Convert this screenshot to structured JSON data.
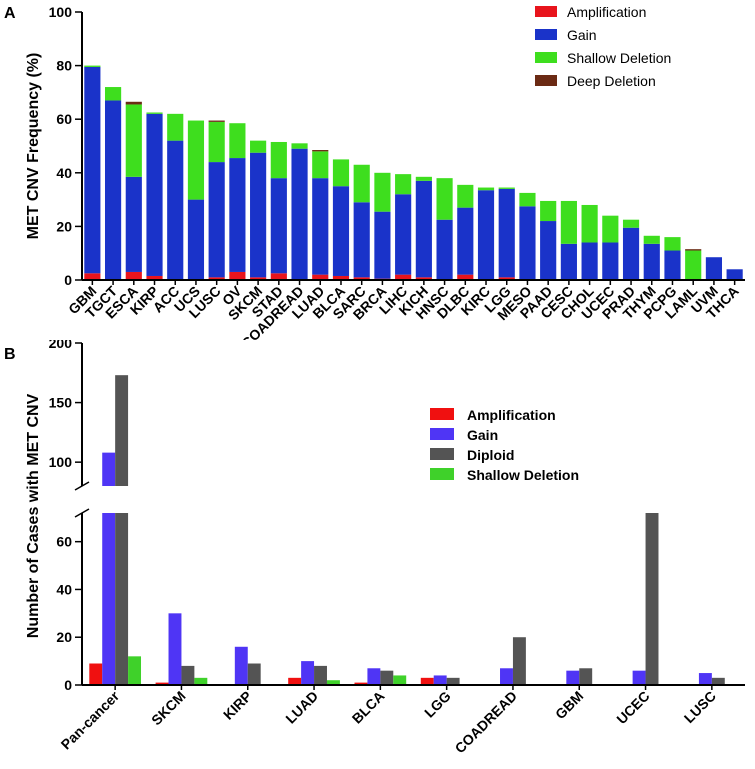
{
  "chart_data": [
    {
      "type": "bar",
      "stacked": true,
      "panel_label": "A",
      "title": "",
      "xlabel": "",
      "ylabel": "MET CNV Frequency (%)",
      "ylim": [
        0,
        100
      ],
      "yticks": [
        0,
        20,
        40,
        60,
        80,
        100
      ],
      "legend_position": "top-right",
      "categories": [
        "GBM",
        "TGCT",
        "ESCA",
        "KIRP",
        "ACC",
        "UCS",
        "LUSC",
        "OV",
        "SKCM",
        "STAD",
        "COADREAD",
        "LUAD",
        "BLCA",
        "SARC",
        "BRCA",
        "LIHC",
        "KICH",
        "HNSC",
        "DLBC",
        "KIRC",
        "LGG",
        "MESO",
        "PAAD",
        "CESC",
        "CHOL",
        "UCEC",
        "PRAD",
        "THYM",
        "PCPG",
        "LAML",
        "UVM",
        "THCA"
      ],
      "series": [
        {
          "name": "Amplification",
          "color": "#e8141c",
          "values": [
            2.5,
            0,
            3,
            1.5,
            0,
            0,
            1,
            3,
            1,
            2.5,
            0,
            2,
            1.5,
            1,
            0.5,
            2,
            1,
            0,
            2,
            0,
            1,
            0,
            0,
            0,
            0,
            0,
            0,
            0,
            0,
            0,
            0,
            0
          ]
        },
        {
          "name": "Gain",
          "color": "#1a33c9",
          "values": [
            77,
            67,
            35.5,
            60.5,
            52,
            30,
            43,
            42.5,
            46.5,
            35.5,
            49,
            36,
            33.5,
            28,
            25,
            30,
            36,
            22.5,
            25,
            33.5,
            33,
            27.5,
            22,
            13.5,
            14,
            14,
            19.5,
            13.5,
            11,
            0,
            8.5,
            4
          ]
        },
        {
          "name": "Shallow Deletion",
          "color": "#3ede1e",
          "values": [
            0.5,
            5,
            27,
            0.5,
            10,
            29.5,
            15,
            13,
            4.5,
            13.5,
            2,
            10,
            10,
            14,
            14.5,
            7.5,
            1.5,
            15.5,
            8.5,
            1,
            0.5,
            5,
            7.5,
            16,
            14,
            10,
            3,
            3,
            5,
            11,
            0,
            0
          ]
        },
        {
          "name": "Deep Deletion",
          "color": "#6b2a14",
          "values": [
            0,
            0,
            1,
            0,
            0,
            0,
            0.5,
            0,
            0,
            0,
            0,
            0.5,
            0,
            0,
            0,
            0,
            0,
            0,
            0,
            0,
            0,
            0,
            0,
            0,
            0,
            0,
            0,
            0,
            0,
            0.5,
            0,
            0
          ]
        }
      ]
    },
    {
      "type": "bar",
      "stacked": false,
      "panel_label": "B",
      "title": "",
      "xlabel": "",
      "ylabel": "Number of Cases with MET CNV",
      "y_broken": true,
      "ylim_lower": [
        0,
        72
      ],
      "ylim_upper": [
        80,
        200
      ],
      "yticks_lower": [
        0,
        20,
        40,
        60
      ],
      "yticks_upper": [
        100,
        150,
        200
      ],
      "legend_position": "top-right",
      "categories": [
        "Pan-cancer",
        "SKCM",
        "KIRP",
        "LUAD",
        "BLCA",
        "LGG",
        "COADREAD",
        "GBM",
        "UCEC",
        "LUSC"
      ],
      "series": [
        {
          "name": "Amplification",
          "color": "#f01010",
          "values": [
            9,
            1,
            0,
            3,
            1,
            3,
            0,
            0,
            0,
            0
          ]
        },
        {
          "name": "Gain",
          "color": "#4f35f5",
          "values": [
            108,
            30,
            16,
            10,
            7,
            4,
            7,
            6,
            6,
            5
          ]
        },
        {
          "name": "Diploid",
          "color": "#545454",
          "values": [
            173,
            8,
            9,
            8,
            6,
            3,
            20,
            7,
            72,
            3
          ]
        },
        {
          "name": "Shallow Deletion",
          "color": "#3fd12a",
          "values": [
            12,
            3,
            0,
            2,
            4,
            0,
            0,
            0,
            0,
            0
          ]
        }
      ]
    }
  ]
}
